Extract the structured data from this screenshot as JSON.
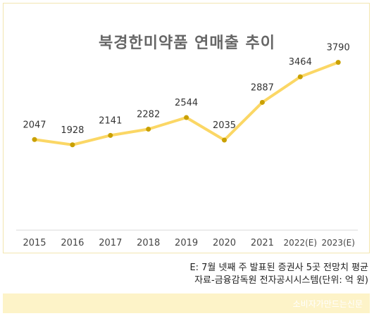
{
  "chart_data": {
    "type": "line",
    "title": "북경한미약품 연매출 추이",
    "categories": [
      "2015",
      "2016",
      "2017",
      "2018",
      "2019",
      "2020",
      "2021",
      "2022(E)",
      "2023(E)"
    ],
    "values": [
      2047,
      1928,
      2141,
      2282,
      2544,
      2035,
      2887,
      3464,
      3790
    ],
    "data_labels": [
      "2047",
      "1928",
      "2141",
      "2282",
      "2544",
      "2035",
      "2887",
      "3464",
      "3790"
    ],
    "ylim": [
      0,
      4500
    ],
    "grid": false,
    "line_color": "#fbd765",
    "marker_color": "#c9a000"
  },
  "notes": {
    "line1": "E: 7월 넷째 주 발표된 증권사 5곳 전망치 평균",
    "line2": "자료-금융감독원 전자공시시스템(단위: 억 원)"
  },
  "watermark": "소비자가만드는신문"
}
